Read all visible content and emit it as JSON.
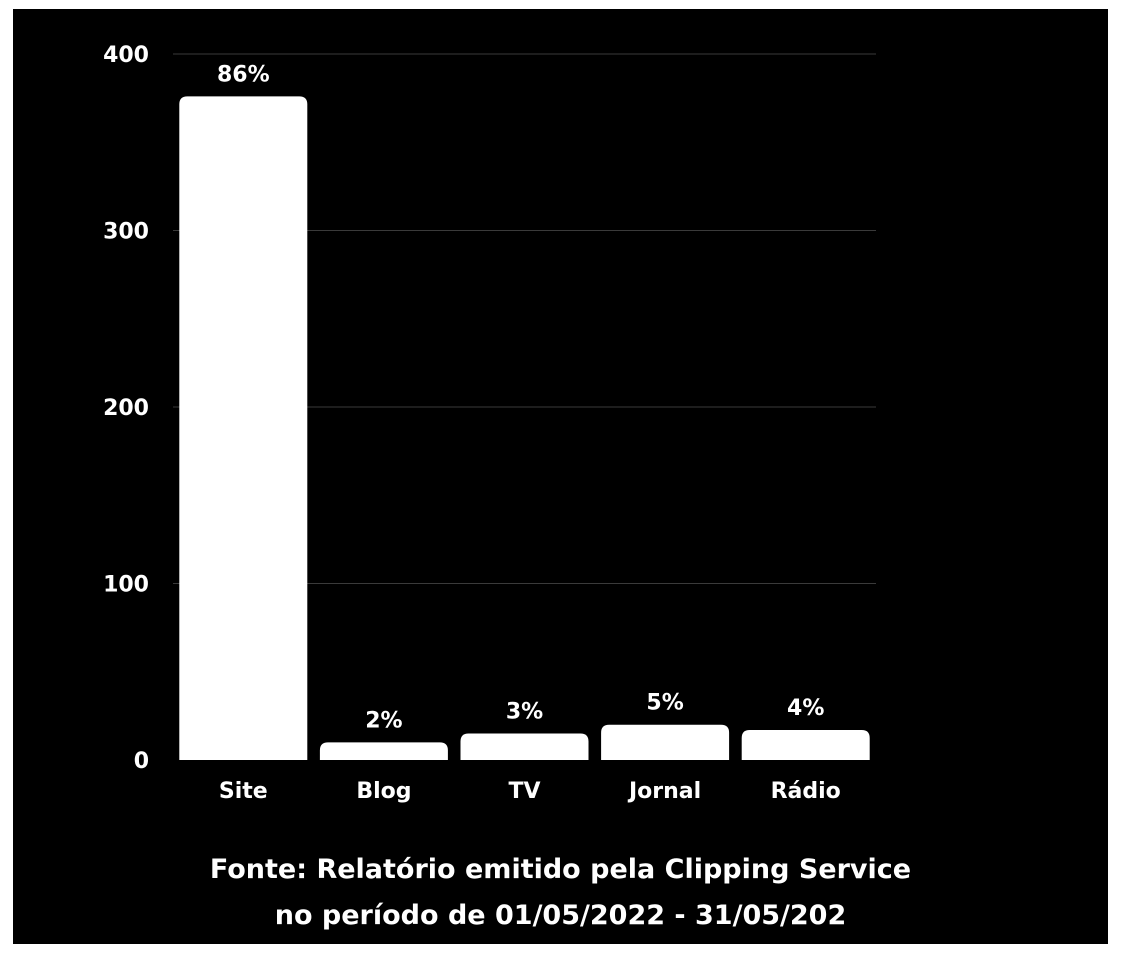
{
  "chart_data": {
    "type": "bar",
    "categories": [
      "Site",
      "Blog",
      "TV",
      "Jornal",
      "Rádio"
    ],
    "values": [
      376,
      10,
      15,
      20,
      17
    ],
    "data_labels": [
      "86%",
      "2%",
      "3%",
      "5%",
      "4%"
    ],
    "ylim": [
      0,
      400
    ],
    "yticks": [
      0,
      100,
      200,
      300,
      400
    ],
    "grid": true,
    "legend": "none",
    "colors": {
      "background": "#000000",
      "bar": "#ffffff",
      "grid": "#3a3a3a",
      "text": "#ffffff"
    }
  },
  "source": {
    "line1": "Fonte: Relatório emitido pela Clipping Service",
    "line2": "no período de 01/05/2022 - 31/05/202"
  }
}
